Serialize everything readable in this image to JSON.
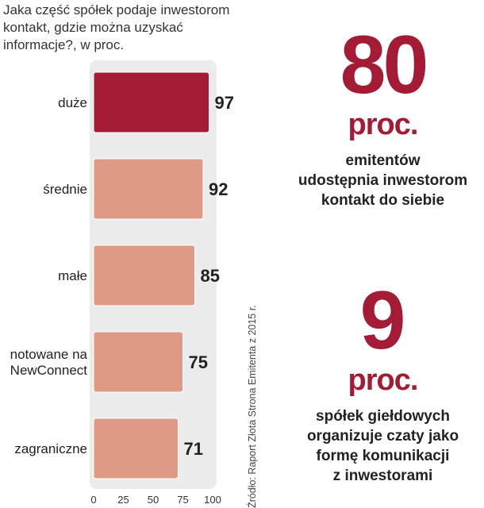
{
  "chart_data": {
    "type": "bar",
    "orientation": "horizontal",
    "title": "Jaka część spółek podaje inwestorom kontakt, gdzie można uzyskać informacje?, w proc.",
    "categories": [
      "duże",
      "średnie",
      "małe",
      "notowane na NewConnect",
      "zagraniczne"
    ],
    "values": [
      97,
      92,
      85,
      75,
      71
    ],
    "xlim": [
      0,
      100
    ],
    "xticks": [
      "0",
      "25",
      "50",
      "75",
      "100"
    ],
    "highlight_color": "#a31b35",
    "bar_color": "#df9a86",
    "source": "Źródło: Raport Złota Strona Emitenta z 2015 r."
  },
  "title_text": "Jaka część spółek podaje inwestorom\nkontakt, gdzie można uzyskać\ninformacje?, w proc.",
  "stat1": {
    "value": "80",
    "unit": "proc.",
    "text": "emitentów\nudostępnia inwestorom\nkontakt do siebie"
  },
  "stat2": {
    "value": "9",
    "unit": "proc.",
    "text": "spółek giełdowych\norganizuje czaty jako\nformę komunikacji\nz inwestorami"
  }
}
